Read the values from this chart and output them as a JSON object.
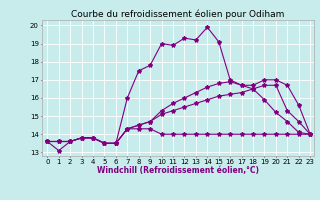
{
  "title": "Courbe du refroidissement éolien pour Odiham",
  "xlabel": "Windchill (Refroidissement éolien,°C)",
  "background_color": "#c8ecec",
  "grid_color": "#ffffff",
  "line_color": "#800080",
  "xlim": [
    -0.5,
    23.3
  ],
  "ylim": [
    12.8,
    20.3
  ],
  "xticks": [
    0,
    1,
    2,
    3,
    4,
    5,
    6,
    7,
    8,
    9,
    10,
    11,
    12,
    13,
    14,
    15,
    16,
    17,
    18,
    19,
    20,
    21,
    22,
    23
  ],
  "yticks": [
    13,
    14,
    15,
    16,
    17,
    18,
    19,
    20
  ],
  "lines": [
    [
      13.6,
      13.1,
      13.6,
      13.8,
      13.8,
      13.5,
      13.5,
      16.0,
      17.5,
      17.8,
      19.0,
      18.9,
      19.3,
      19.2,
      19.9,
      19.1,
      17.0,
      16.7,
      16.5,
      16.7,
      16.7,
      15.3,
      14.7,
      14.0
    ],
    [
      13.6,
      13.6,
      13.6,
      13.8,
      13.8,
      13.5,
      13.5,
      14.3,
      14.3,
      14.3,
      14.0,
      14.0,
      14.0,
      14.0,
      14.0,
      14.0,
      14.0,
      14.0,
      14.0,
      14.0,
      14.0,
      14.0,
      14.0,
      14.0
    ],
    [
      13.6,
      13.6,
      13.6,
      13.8,
      13.8,
      13.5,
      13.5,
      14.3,
      14.5,
      14.7,
      15.1,
      15.3,
      15.5,
      15.7,
      15.9,
      16.1,
      16.2,
      16.3,
      16.5,
      15.9,
      15.2,
      14.7,
      14.1,
      14.0
    ],
    [
      13.6,
      13.6,
      13.6,
      13.8,
      13.8,
      13.5,
      13.5,
      14.3,
      14.5,
      14.7,
      15.3,
      15.7,
      16.0,
      16.3,
      16.6,
      16.8,
      16.9,
      16.7,
      16.7,
      17.0,
      17.0,
      16.7,
      15.6,
      14.0
    ]
  ],
  "marker": "*",
  "markersize": 3,
  "linewidth": 0.8,
  "title_fontsize": 6.5,
  "label_fontsize": 5.5,
  "tick_fontsize": 5
}
